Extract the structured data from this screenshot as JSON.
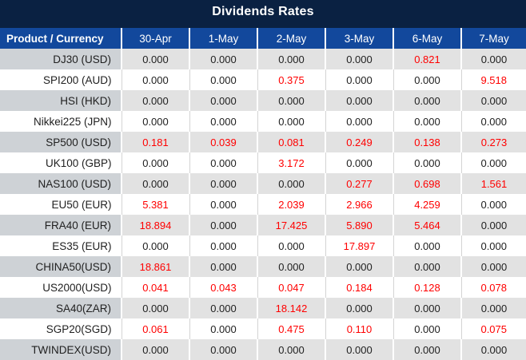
{
  "title": "Dividends Rates",
  "colors": {
    "title_bar_bg": "#0a2142",
    "header_bg": "#12489c",
    "header_text": "#ffffff",
    "zebra_label_bg": "#ced2d6",
    "zebra_value_bg": "#e2e2e2",
    "row_white_bg": "#ffffff",
    "value_zero_color": "#212121",
    "value_nonzero_color": "#ff0000"
  },
  "chart_data": {
    "type": "table",
    "title": "Dividends Rates",
    "columns": [
      "Product / Currency",
      "30-Apr",
      "1-May",
      "2-May",
      "3-May",
      "6-May",
      "7-May"
    ],
    "rows": [
      {
        "product": "DJ30 (USD)",
        "values": [
          "0.000",
          "0.000",
          "0.000",
          "0.000",
          "0.821",
          "0.000"
        ]
      },
      {
        "product": "SPI200 (AUD)",
        "values": [
          "0.000",
          "0.000",
          "0.375",
          "0.000",
          "0.000",
          "9.518"
        ]
      },
      {
        "product": "HSI (HKD)",
        "values": [
          "0.000",
          "0.000",
          "0.000",
          "0.000",
          "0.000",
          "0.000"
        ]
      },
      {
        "product": "Nikkei225 (JPN)",
        "values": [
          "0.000",
          "0.000",
          "0.000",
          "0.000",
          "0.000",
          "0.000"
        ]
      },
      {
        "product": "SP500 (USD)",
        "values": [
          "0.181",
          "0.039",
          "0.081",
          "0.249",
          "0.138",
          "0.273"
        ]
      },
      {
        "product": "UK100 (GBP)",
        "values": [
          "0.000",
          "0.000",
          "3.172",
          "0.000",
          "0.000",
          "0.000"
        ]
      },
      {
        "product": "NAS100 (USD)",
        "values": [
          "0.000",
          "0.000",
          "0.000",
          "0.277",
          "0.698",
          "1.561"
        ]
      },
      {
        "product": "EU50 (EUR)",
        "values": [
          "5.381",
          "0.000",
          "2.039",
          "2.966",
          "4.259",
          "0.000"
        ]
      },
      {
        "product": "FRA40 (EUR)",
        "values": [
          "18.894",
          "0.000",
          "17.425",
          "5.890",
          "5.464",
          "0.000"
        ]
      },
      {
        "product": "ES35 (EUR)",
        "values": [
          "0.000",
          "0.000",
          "0.000",
          "17.897",
          "0.000",
          "0.000"
        ]
      },
      {
        "product": "CHINA50(USD)",
        "values": [
          "18.861",
          "0.000",
          "0.000",
          "0.000",
          "0.000",
          "0.000"
        ]
      },
      {
        "product": "US2000(USD)",
        "values": [
          "0.041",
          "0.043",
          "0.047",
          "0.184",
          "0.128",
          "0.078"
        ]
      },
      {
        "product": "SA40(ZAR)",
        "values": [
          "0.000",
          "0.000",
          "18.142",
          "0.000",
          "0.000",
          "0.000"
        ]
      },
      {
        "product": "SGP20(SGD)",
        "values": [
          "0.061",
          "0.000",
          "0.475",
          "0.110",
          "0.000",
          "0.075"
        ]
      },
      {
        "product": "TWINDEX(USD)",
        "values": [
          "0.000",
          "0.000",
          "0.000",
          "0.000",
          "0.000",
          "0.000"
        ]
      }
    ]
  }
}
